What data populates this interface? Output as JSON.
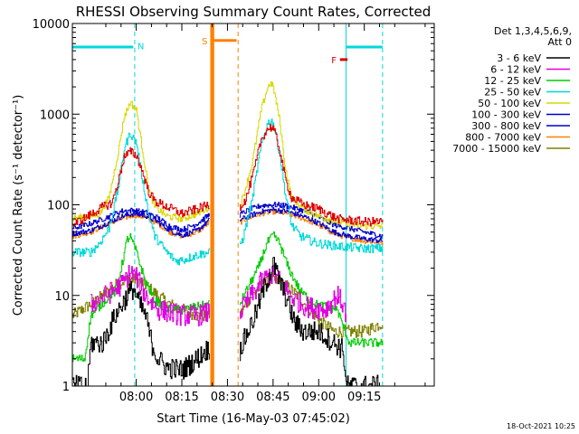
{
  "chart_data": {
    "type": "line",
    "title": "RHESSI Observing Summary Count Rates, Corrected",
    "xlabel": "Start Time (16-May-03 07:45:02)",
    "ylabel": "Corrected Count Rate (s⁻¹ detector⁻¹)",
    "yscale": "log",
    "ylim": [
      1,
      10000
    ],
    "xlim": [
      -6,
      113
    ],
    "x_units": "minutes after 07:45:02",
    "x_ticks": [
      {
        "t": 15,
        "label": "08:00"
      },
      {
        "t": 30,
        "label": "08:15"
      },
      {
        "t": 45,
        "label": "08:30"
      },
      {
        "t": 60,
        "label": "08:45"
      },
      {
        "t": 75,
        "label": "09:00"
      },
      {
        "t": 90,
        "label": "09:15"
      }
    ],
    "y_ticks": [
      {
        "v": 1,
        "label": "1"
      },
      {
        "v": 10,
        "label": "10"
      },
      {
        "v": 100,
        "label": "100"
      },
      {
        "v": 1000,
        "label": "1000"
      },
      {
        "v": 10000,
        "label": "10000"
      }
    ],
    "legend_header": [
      "Det 1,3,4,5,6,9,",
      "Att 0"
    ],
    "legend_placement": "right",
    "grid": false,
    "gap": [
      39,
      49
    ],
    "series": [
      {
        "name": "3 - 6 keV",
        "color": "#000000",
        "jitter": 0.12,
        "points": [
          [
            -6,
            1.0
          ],
          [
            -1,
            1.0
          ],
          [
            0,
            3
          ],
          [
            4,
            3
          ],
          [
            8,
            6
          ],
          [
            12,
            10
          ],
          [
            14,
            12
          ],
          [
            16,
            8
          ],
          [
            18,
            6
          ],
          [
            20,
            3
          ],
          [
            22,
            2
          ],
          [
            25,
            1.6
          ],
          [
            30,
            1.5
          ],
          [
            35,
            2
          ],
          [
            38,
            2.5
          ],
          [
            39,
            2.5
          ],
          [
            49,
            2.5
          ],
          [
            50,
            3
          ],
          [
            54,
            6
          ],
          [
            57,
            12
          ],
          [
            59,
            18
          ],
          [
            60,
            22
          ],
          [
            61,
            18
          ],
          [
            63,
            12
          ],
          [
            65,
            8
          ],
          [
            67,
            5
          ],
          [
            70,
            4
          ],
          [
            75,
            4
          ],
          [
            80,
            3
          ],
          [
            83,
            2.5
          ],
          [
            84,
            1
          ],
          [
            95,
            1
          ]
        ]
      },
      {
        "name": "6 - 12 keV",
        "color": "#e000e0",
        "jitter": 0.12,
        "points": [
          [
            0,
            8
          ],
          [
            5,
            10
          ],
          [
            10,
            13
          ],
          [
            13,
            18
          ],
          [
            15,
            16
          ],
          [
            18,
            10
          ],
          [
            22,
            7
          ],
          [
            26,
            6.5
          ],
          [
            30,
            6
          ],
          [
            35,
            6
          ],
          [
            39,
            6.5
          ],
          [
            49,
            6.5
          ],
          [
            52,
            9
          ],
          [
            56,
            14
          ],
          [
            59,
            17
          ],
          [
            61,
            16
          ],
          [
            64,
            12
          ],
          [
            67,
            9
          ],
          [
            71,
            7.5
          ],
          [
            77,
            7
          ],
          [
            81,
            10
          ],
          [
            83,
            8
          ],
          [
            84,
            6
          ]
        ]
      },
      {
        "name": "12 - 25 keV",
        "color": "#00cc00",
        "jitter": 0.05,
        "points": [
          [
            -6,
            2
          ],
          [
            -2,
            2
          ],
          [
            0,
            6
          ],
          [
            5,
            9
          ],
          [
            8,
            11
          ],
          [
            10,
            20
          ],
          [
            12,
            42
          ],
          [
            13,
            44
          ],
          [
            15,
            30
          ],
          [
            18,
            14
          ],
          [
            21,
            9
          ],
          [
            25,
            7
          ],
          [
            30,
            7
          ],
          [
            35,
            7.5
          ],
          [
            39,
            8
          ],
          [
            49,
            8
          ],
          [
            51,
            11
          ],
          [
            55,
            20
          ],
          [
            58,
            38
          ],
          [
            60,
            46
          ],
          [
            62,
            38
          ],
          [
            65,
            20
          ],
          [
            69,
            11
          ],
          [
            74,
            8
          ],
          [
            81,
            7
          ],
          [
            85,
            3
          ],
          [
            96,
            3
          ]
        ]
      },
      {
        "name": "25 - 50 keV",
        "color": "#00d8d8",
        "jitter": 0.05,
        "points": [
          [
            -6,
            30
          ],
          [
            0,
            30
          ],
          [
            3,
            38
          ],
          [
            6,
            55
          ],
          [
            9,
            150
          ],
          [
            11,
            420
          ],
          [
            13,
            620
          ],
          [
            15,
            480
          ],
          [
            17,
            190
          ],
          [
            19,
            80
          ],
          [
            21,
            45
          ],
          [
            25,
            30
          ],
          [
            28,
            24
          ],
          [
            31,
            25
          ],
          [
            35,
            28
          ],
          [
            39,
            30
          ],
          [
            49,
            36
          ],
          [
            50,
            42
          ],
          [
            53,
            110
          ],
          [
            56,
            440
          ],
          [
            58,
            760
          ],
          [
            59,
            860
          ],
          [
            60,
            800
          ],
          [
            62,
            380
          ],
          [
            64,
            130
          ],
          [
            66,
            60
          ],
          [
            69,
            45
          ],
          [
            74,
            38
          ],
          [
            81,
            35
          ],
          [
            89,
            33
          ],
          [
            96,
            33
          ]
        ]
      },
      {
        "name": "50 - 100 keV",
        "color": "#d8d800",
        "jitter": 0.04,
        "points": [
          [
            -6,
            70
          ],
          [
            0,
            75
          ],
          [
            3,
            80
          ],
          [
            6,
            120
          ],
          [
            9,
            380
          ],
          [
            11,
            950
          ],
          [
            13,
            1350
          ],
          [
            15,
            1100
          ],
          [
            17,
            400
          ],
          [
            19,
            150
          ],
          [
            21,
            95
          ],
          [
            25,
            75
          ],
          [
            30,
            70
          ],
          [
            35,
            80
          ],
          [
            39,
            95
          ],
          [
            49,
            100
          ],
          [
            50,
            120
          ],
          [
            53,
            280
          ],
          [
            56,
            1100
          ],
          [
            58,
            1900
          ],
          [
            59,
            2200
          ],
          [
            60,
            2000
          ],
          [
            62,
            900
          ],
          [
            64,
            250
          ],
          [
            66,
            120
          ],
          [
            70,
            90
          ],
          [
            75,
            75
          ],
          [
            81,
            65
          ],
          [
            90,
            58
          ],
          [
            96,
            58
          ]
        ]
      },
      {
        "name": "100 - 300 keV",
        "color": "#0000cc",
        "jitter": 0.03,
        "points": [
          [
            -6,
            55
          ],
          [
            0,
            62
          ],
          [
            5,
            72
          ],
          [
            10,
            85
          ],
          [
            14,
            87
          ],
          [
            18,
            82
          ],
          [
            22,
            72
          ],
          [
            26,
            58
          ],
          [
            30,
            53
          ],
          [
            35,
            62
          ],
          [
            39,
            78
          ],
          [
            49,
            78
          ],
          [
            52,
            88
          ],
          [
            56,
            98
          ],
          [
            60,
            100
          ],
          [
            64,
            98
          ],
          [
            68,
            90
          ],
          [
            72,
            82
          ],
          [
            76,
            70
          ],
          [
            80,
            60
          ],
          [
            85,
            55
          ],
          [
            90,
            50
          ],
          [
            96,
            45
          ]
        ]
      },
      {
        "name": "300 - 800 keV",
        "color": "#0000cc",
        "jitter": 0.03,
        "points": [
          [
            -6,
            48
          ],
          [
            0,
            52
          ],
          [
            5,
            62
          ],
          [
            10,
            74
          ],
          [
            14,
            80
          ],
          [
            18,
            76
          ],
          [
            22,
            65
          ],
          [
            26,
            52
          ],
          [
            30,
            46
          ],
          [
            35,
            52
          ],
          [
            39,
            68
          ],
          [
            49,
            68
          ],
          [
            52,
            75
          ],
          [
            56,
            84
          ],
          [
            60,
            88
          ],
          [
            64,
            85
          ],
          [
            68,
            78
          ],
          [
            72,
            70
          ],
          [
            76,
            60
          ],
          [
            80,
            50
          ],
          [
            85,
            45
          ],
          [
            90,
            42
          ],
          [
            96,
            40
          ]
        ]
      },
      {
        "name": "800 - 7000 keV",
        "color": "#ff8000",
        "jitter": 0.03,
        "points": [
          [
            -6,
            45
          ],
          [
            0,
            50
          ],
          [
            5,
            60
          ],
          [
            10,
            70
          ],
          [
            14,
            77
          ],
          [
            18,
            73
          ],
          [
            22,
            62
          ],
          [
            26,
            50
          ],
          [
            30,
            45
          ],
          [
            35,
            50
          ],
          [
            39,
            64
          ],
          [
            49,
            64
          ],
          [
            52,
            72
          ],
          [
            56,
            80
          ],
          [
            60,
            84
          ],
          [
            64,
            81
          ],
          [
            68,
            74
          ],
          [
            72,
            66
          ],
          [
            76,
            57
          ],
          [
            80,
            48
          ],
          [
            85,
            43
          ],
          [
            90,
            40
          ],
          [
            96,
            38
          ]
        ]
      },
      {
        "name": "7000 - 15000 keV",
        "color": "#808000",
        "jitter": 0.07,
        "points": [
          [
            -6,
            6
          ],
          [
            0,
            8
          ],
          [
            4,
            10
          ],
          [
            8,
            13
          ],
          [
            12,
            15
          ],
          [
            15,
            15
          ],
          [
            18,
            13
          ],
          [
            22,
            10
          ],
          [
            26,
            8
          ],
          [
            30,
            7
          ],
          [
            35,
            6
          ],
          [
            39,
            6
          ],
          [
            49,
            6
          ],
          [
            52,
            9
          ],
          [
            56,
            13
          ],
          [
            60,
            15
          ],
          [
            64,
            13
          ],
          [
            68,
            10
          ],
          [
            72,
            7
          ],
          [
            76,
            5
          ],
          [
            80,
            4
          ],
          [
            85,
            4
          ],
          [
            90,
            4
          ],
          [
            96,
            5
          ]
        ]
      }
    ],
    "red_line": {
      "color": "#dd0000",
      "jitter": 0.05,
      "points": [
        [
          -6,
          60
        ],
        [
          0,
          78
        ],
        [
          4,
          95
        ],
        [
          7,
          105
        ],
        [
          9,
          180
        ],
        [
          11,
          340
        ],
        [
          13,
          385
        ],
        [
          15,
          350
        ],
        [
          17,
          230
        ],
        [
          19,
          140
        ],
        [
          21,
          110
        ],
        [
          25,
          95
        ],
        [
          30,
          80
        ],
        [
          35,
          90
        ],
        [
          39,
          100
        ],
        [
          49,
          95
        ],
        [
          51,
          115
        ],
        [
          54,
          260
        ],
        [
          56,
          520
        ],
        [
          58,
          680
        ],
        [
          59,
          720
        ],
        [
          60,
          700
        ],
        [
          62,
          420
        ],
        [
          64,
          190
        ],
        [
          66,
          120
        ],
        [
          70,
          100
        ],
        [
          75,
          90
        ],
        [
          81,
          70
        ],
        [
          90,
          65
        ],
        [
          96,
          65
        ]
      ]
    },
    "annotations": [
      {
        "label": "N",
        "color": "#00d8d8",
        "segments": [
          [
            -6,
            5500,
            14,
            5500
          ],
          [
            84,
            5500,
            96,
            5500
          ]
        ],
        "t": 16.5,
        "v": 5700
      },
      {
        "label": "S",
        "color": "#ff8000",
        "segments": [
          [
            40,
            6500,
            48,
            6500
          ]
        ],
        "t": 37.5,
        "v": 6500
      },
      {
        "label": "F",
        "color": "#dd0000",
        "segments": [
          [
            82,
            4000,
            84.5,
            4000
          ]
        ],
        "t": 80,
        "v": 4000
      }
    ],
    "vlines": [
      {
        "t": -6,
        "color": "#00d8d8",
        "dash": false
      },
      {
        "t": 14.5,
        "color": "#00d8d8",
        "dash": true
      },
      {
        "t": 39.5,
        "color": "#ff8000",
        "dash": false
      },
      {
        "t": 40.5,
        "color": "#ff8000",
        "dash": false
      },
      {
        "t": 48.5,
        "color": "#ff8000",
        "dash": true
      },
      {
        "t": 84,
        "color": "#00d8d8",
        "dash": false
      },
      {
        "t": 96,
        "color": "#00d8d8",
        "dash": true
      }
    ],
    "date_stamp": "18-Oct-2021 10:25"
  }
}
